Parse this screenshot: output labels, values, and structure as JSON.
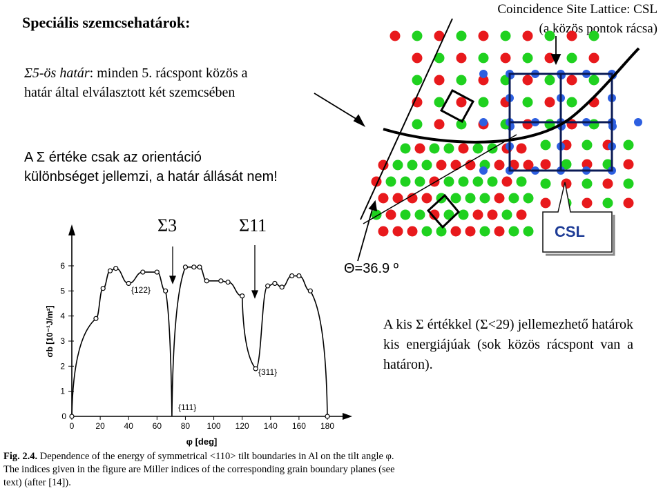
{
  "heading": "Speciális szemcsehatárok:",
  "csl_title_line1": "Coincidence Site Lattice: CSL",
  "csl_title_line2": "(a közös pontok rácsa)",
  "sigma5_prefix": "Σ5-ös határ",
  "sigma5_rest": ": minden 5. rácspont közös a",
  "sigma5_line2": "határ által elválasztott két szemcsében",
  "orient_line1": "A Σ értéke csak az orientáció",
  "orient_line2": "különbséget jellemzi, a határ állását nem!",
  "sigma3": "Σ3",
  "sigma11": "Σ11",
  "theta": "Θ=36.9 º",
  "csl_box_label": "CSL",
  "low_sigma_text": "A kis Σ értékkel (Σ<29) jellemezhető határok kis energiájúak (sok közös rácspont van a határon).",
  "caption_bold": "Fig. 2.4.",
  "caption_text": " Dependence of the energy of symmetrical <110> tilt boundaries in Al on the tilt angle φ. The indices given in the figure are Miller indices of the corresponding grain boundary planes (see text) (after [14]).",
  "colors": {
    "red": "#e8191c",
    "green": "#1fd11f",
    "blue": "#2d5fe0"
  },
  "chart_data": {
    "type": "line",
    "xlabel": "φ [deg]",
    "ylabel": "σb [10⁻¹J/m²]",
    "xlim": [
      0,
      180
    ],
    "ylim": [
      0,
      6
    ],
    "xticks": [
      "0",
      "20",
      "40",
      "60",
      "80",
      "100",
      "120",
      "140",
      "160",
      "180"
    ],
    "yticks": [
      "1",
      "2",
      "3",
      "4",
      "5",
      "6"
    ],
    "annotations": [
      "{122}",
      "{111}",
      "{311}"
    ],
    "x": [
      0,
      17,
      22,
      27,
      31,
      40,
      50,
      60,
      66,
      70.5,
      80,
      86,
      90,
      95,
      105,
      110,
      120,
      129.5,
      138,
      143,
      148,
      155,
      160,
      168,
      180
    ],
    "y": [
      0,
      3.9,
      5.1,
      5.8,
      5.9,
      5.3,
      5.75,
      5.75,
      5.0,
      0,
      5.95,
      5.95,
      5.95,
      5.4,
      5.4,
      5.35,
      4.8,
      1.9,
      5.2,
      5.3,
      5.15,
      5.6,
      5.6,
      5.0,
      0
    ]
  }
}
